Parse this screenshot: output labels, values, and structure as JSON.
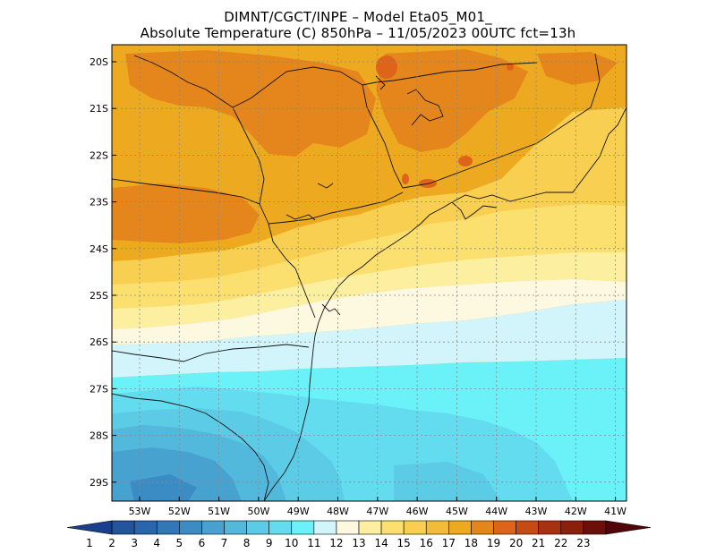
{
  "header": {
    "line1": "DIMNT/CGCT/INPE –  Model Eta05_M01_",
    "line2": "Absolute Temperature (C) 850hPa –  11/05/2023 00UTC fct=13h"
  },
  "axes": {
    "lat_labels": [
      "20S",
      "21S",
      "22S",
      "23S",
      "24S",
      "25S",
      "26S",
      "27S",
      "28S",
      "29S"
    ],
    "lon_labels": [
      "53W",
      "52W",
      "51W",
      "50W",
      "49W",
      "48W",
      "47W",
      "46W",
      "45W",
      "44W",
      "43W",
      "42W",
      "41W"
    ]
  },
  "colorbar": {
    "labels": [
      "1",
      "2",
      "3",
      "4",
      "5",
      "6",
      "7",
      "8",
      "9",
      "10",
      "11",
      "12",
      "13",
      "14",
      "15",
      "16",
      "17",
      "18",
      "19",
      "20",
      "21",
      "22",
      "23"
    ],
    "colors": [
      "#1a3f8c",
      "#23549e",
      "#2a66ae",
      "#3278b8",
      "#3b8cc4",
      "#48a2d0",
      "#52b8dc",
      "#5ccbe6",
      "#64dcef",
      "#6bf2f8",
      "#d2f5fb",
      "#fdf8e0",
      "#fcefa0",
      "#fbe070",
      "#f8cf50",
      "#f2bc3a",
      "#edaa20",
      "#e5861c",
      "#dd6418",
      "#c54a14",
      "#a8320f",
      "#8c1e0c",
      "#6e0e0a",
      "#520508"
    ]
  }
}
